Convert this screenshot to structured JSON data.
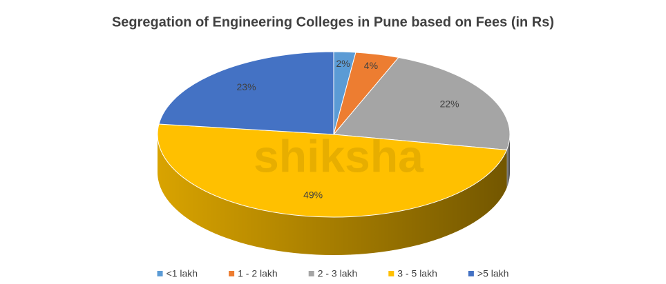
{
  "chart_data": {
    "type": "pie3d",
    "title": "Segregation of Engineering Colleges in Pune based on Fees (in Rs)",
    "watermark": "shiksha",
    "categories": [
      "<1 lakh",
      "1 - 2 lakh",
      "2 - 3 lakh",
      "3 - 5 lakh",
      ">5 lakh"
    ],
    "values": [
      2,
      4,
      22,
      49,
      23
    ],
    "value_labels": [
      "2%",
      "4%",
      "22%",
      "49%",
      "23%"
    ],
    "colors": [
      "#5b9bd5",
      "#ed7d31",
      "#a5a5a5",
      "#ffc000",
      "#4472c4"
    ],
    "legend": "bottom"
  }
}
